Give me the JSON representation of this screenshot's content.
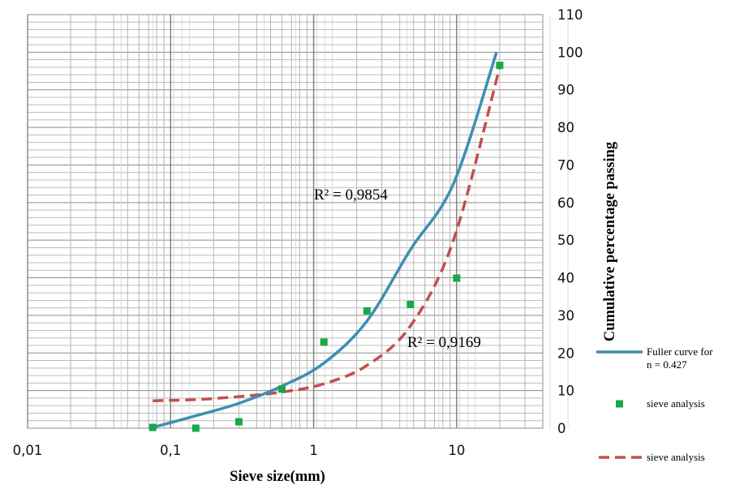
{
  "chart_data": {
    "type": "scatter",
    "xlabel": "Sieve size(mm)",
    "ylabel": "Cumulative percentage passing",
    "x_scale": "log",
    "xlim": [
      0.01,
      40
    ],
    "ylim": [
      0,
      110
    ],
    "x_ticks": [
      0.01,
      0.1,
      1,
      10
    ],
    "x_tick_labels": [
      "0,01",
      "0,1",
      "1",
      "10"
    ],
    "y_ticks": [
      0,
      10,
      20,
      30,
      40,
      50,
      60,
      70,
      80,
      90,
      100,
      110
    ],
    "y_tick_labels": [
      "0",
      "10",
      "20",
      "30",
      "40",
      "50",
      "60",
      "70",
      "80",
      "90",
      "100",
      "110"
    ],
    "y_axis_side": "right",
    "grid": true,
    "legend_position": "right",
    "series": [
      {
        "name": "Fuller curve for n = 0.427",
        "kind": "line",
        "color": "#3d8fb0",
        "x": [
          0.075,
          0.15,
          0.3,
          0.6,
          1.18,
          2.36,
          4.75,
          9.5,
          19.0
        ],
        "y": [
          0.2,
          3.3,
          6.6,
          11.2,
          17.3,
          28.5,
          47.5,
          65.0,
          100.0
        ]
      },
      {
        "name": "sieve analysis",
        "kind": "markers",
        "color": "#19a84a",
        "x": [
          0.075,
          0.15,
          0.3,
          0.6,
          1.18,
          2.36,
          4.75,
          10.0,
          20.0
        ],
        "y": [
          0.2,
          0.0,
          1.7,
          10.4,
          22.9,
          31.2,
          32.9,
          39.9,
          96.5
        ]
      },
      {
        "name": "sieve analysis",
        "kind": "dashed-trend",
        "color": "#c0504d",
        "x": [
          0.075,
          0.15,
          0.3,
          0.6,
          1.18,
          2.36,
          4.75,
          9.5,
          20.0
        ],
        "y": [
          7.3,
          7.6,
          8.4,
          9.6,
          11.8,
          16.7,
          27.2,
          50.0,
          96.0
        ]
      }
    ],
    "annotations": [
      {
        "text": "R² = 0,9854"
      },
      {
        "text": "R² = 0,9169"
      }
    ]
  }
}
